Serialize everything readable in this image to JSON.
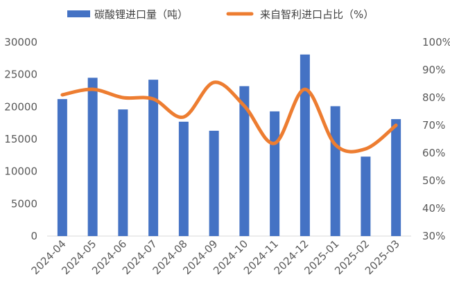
{
  "chart_data": {
    "type": "bar",
    "legend": {
      "position": "top",
      "items": [
        {
          "label": "碳酸锂进口量（吨）",
          "kind": "bar"
        },
        {
          "label": "来自智利进口占比（%）",
          "kind": "line"
        }
      ]
    },
    "colors": {
      "bar": "#4472C4",
      "line": "#ED7D31"
    },
    "categories": [
      "2024-04",
      "2024-05",
      "2024-06",
      "2024-07",
      "2024-08",
      "2024-09",
      "2024-10",
      "2024-11",
      "2024-12",
      "2025-01",
      "2025-02",
      "2025-03"
    ],
    "series": [
      {
        "name": "碳酸锂进口量（吨）",
        "type": "bar",
        "axis": "left",
        "values": [
          21200,
          24500,
          19600,
          24200,
          17700,
          16300,
          23200,
          19300,
          28100,
          20100,
          12300,
          18100
        ]
      },
      {
        "name": "来自智利进口占比（%）",
        "type": "line",
        "axis": "right",
        "smooth": true,
        "values": [
          81,
          83,
          80,
          79.5,
          73,
          85.5,
          77,
          63.5,
          83,
          63,
          61.5,
          70
        ]
      }
    ],
    "y_left": {
      "min": 0,
      "max": 30000,
      "ticks": [
        "0",
        "5000",
        "10000",
        "15000",
        "20000",
        "25000",
        "30000"
      ]
    },
    "y_right": {
      "min": 30,
      "max": 100,
      "ticks": [
        "30%",
        "40%",
        "50%",
        "60%",
        "70%",
        "80%",
        "90%",
        "100%"
      ]
    },
    "grid": false
  }
}
